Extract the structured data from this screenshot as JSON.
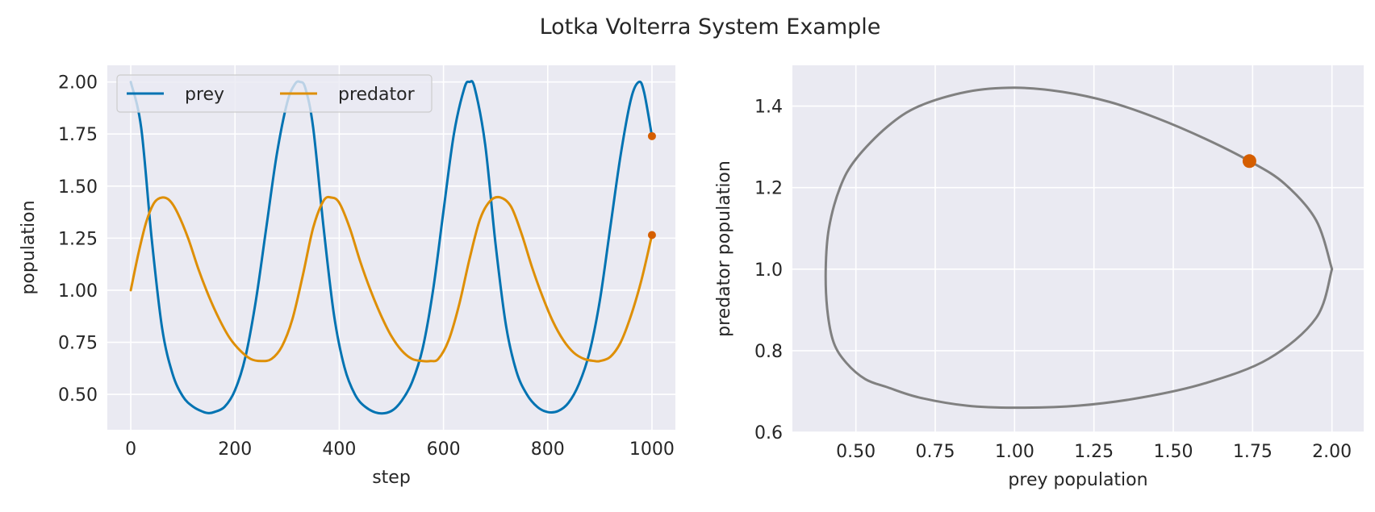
{
  "figure_title": "Lotka Volterra System Example",
  "chart_data": [
    {
      "type": "line",
      "xlabel": "step",
      "ylabel": "population",
      "xlim": [
        -45,
        1045
      ],
      "ylim": [
        0.33,
        2.08
      ],
      "xticks": [
        0,
        200,
        400,
        600,
        800,
        1000
      ],
      "yticks": [
        0.5,
        0.75,
        1.0,
        1.25,
        1.5,
        1.75,
        2.0
      ],
      "xtick_labels": [
        "0",
        "200",
        "400",
        "600",
        "800",
        "1000"
      ],
      "ytick_labels": [
        "0.50",
        "0.75",
        "1.00",
        "1.25",
        "1.50",
        "1.75",
        "2.00"
      ],
      "grid": true,
      "legend_position": "top-left",
      "series": [
        {
          "name": "prey",
          "color": "#0173b2",
          "x": [
            0,
            20,
            40,
            60,
            80,
            100,
            120,
            140,
            150,
            160,
            180,
            200,
            220,
            240,
            260,
            280,
            300,
            315,
            325,
            335,
            350,
            370,
            390,
            410,
            430,
            450,
            475,
            500,
            520,
            540,
            560,
            580,
            600,
            620,
            640,
            650,
            660,
            680,
            700,
            720,
            740,
            760,
            780,
            800,
            820,
            840,
            860,
            880,
            900,
            920,
            940,
            960,
            975,
            985,
            1000
          ],
          "y": [
            2.0,
            1.78,
            1.25,
            0.82,
            0.6,
            0.49,
            0.44,
            0.415,
            0.41,
            0.415,
            0.44,
            0.52,
            0.68,
            0.95,
            1.3,
            1.65,
            1.9,
            1.99,
            2.0,
            1.97,
            1.78,
            1.3,
            0.88,
            0.63,
            0.5,
            0.44,
            0.41,
            0.42,
            0.47,
            0.56,
            0.72,
            1.0,
            1.38,
            1.75,
            1.97,
            2.0,
            1.97,
            1.7,
            1.22,
            0.83,
            0.61,
            0.5,
            0.44,
            0.415,
            0.42,
            0.46,
            0.55,
            0.7,
            0.95,
            1.3,
            1.65,
            1.92,
            2.0,
            1.95,
            1.74
          ]
        },
        {
          "name": "predator",
          "color": "#de8f05",
          "x": [
            0,
            15,
            30,
            45,
            60,
            75,
            90,
            110,
            130,
            150,
            170,
            190,
            210,
            230,
            250,
            270,
            290,
            310,
            330,
            350,
            370,
            385,
            400,
            420,
            440,
            460,
            480,
            500,
            520,
            540,
            560,
            575,
            590,
            610,
            630,
            650,
            670,
            690,
            710,
            730,
            750,
            770,
            790,
            810,
            830,
            850,
            870,
            890,
            900,
            920,
            940,
            960,
            980,
            1000
          ],
          "y": [
            1.0,
            1.18,
            1.33,
            1.42,
            1.445,
            1.43,
            1.37,
            1.25,
            1.1,
            0.97,
            0.86,
            0.77,
            0.71,
            0.67,
            0.66,
            0.67,
            0.73,
            0.86,
            1.07,
            1.3,
            1.43,
            1.445,
            1.42,
            1.3,
            1.14,
            1.0,
            0.88,
            0.78,
            0.71,
            0.67,
            0.66,
            0.66,
            0.67,
            0.76,
            0.93,
            1.15,
            1.34,
            1.43,
            1.445,
            1.4,
            1.27,
            1.11,
            0.97,
            0.85,
            0.76,
            0.7,
            0.67,
            0.66,
            0.66,
            0.68,
            0.75,
            0.88,
            1.05,
            1.265
          ]
        }
      ],
      "current_markers": [
        {
          "x": 1000,
          "y": 1.74
        },
        {
          "x": 1000,
          "y": 1.265
        }
      ],
      "marker_color": "#d55e00"
    },
    {
      "type": "line",
      "xlabel": "prey population",
      "ylabel": "predator population",
      "xlim": [
        0.3,
        2.1
      ],
      "ylim": [
        0.6,
        1.5
      ],
      "xticks": [
        0.5,
        0.75,
        1.0,
        1.25,
        1.5,
        1.75,
        2.0
      ],
      "yticks": [
        0.6,
        0.8,
        1.0,
        1.2,
        1.4
      ],
      "xtick_labels": [
        "0.50",
        "0.75",
        "1.00",
        "1.25",
        "1.50",
        "1.75",
        "2.00"
      ],
      "ytick_labels": [
        "0.6",
        "0.8",
        "1.0",
        "1.2",
        "1.4"
      ],
      "grid": true,
      "series": [
        {
          "color": "#808080",
          "x": [
            2.0,
            1.95,
            1.85,
            1.74,
            1.6,
            1.45,
            1.3,
            1.15,
            1.0,
            0.85,
            0.7,
            0.6,
            0.5,
            0.45,
            0.415,
            0.405,
            0.41,
            0.43,
            0.47,
            0.53,
            0.6,
            0.7,
            0.85,
            1.0,
            1.2,
            1.4,
            1.6,
            1.8,
            1.95,
            2.0
          ],
          "y": [
            1.0,
            1.12,
            1.21,
            1.265,
            1.32,
            1.37,
            1.41,
            1.435,
            1.445,
            1.435,
            1.4,
            1.35,
            1.27,
            1.2,
            1.1,
            1.0,
            0.9,
            0.82,
            0.77,
            0.73,
            0.71,
            0.685,
            0.665,
            0.66,
            0.665,
            0.685,
            0.72,
            0.78,
            0.88,
            1.0
          ]
        }
      ],
      "current_markers": [
        {
          "x": 1.74,
          "y": 1.265
        }
      ],
      "marker_color": "#d55e00"
    }
  ]
}
